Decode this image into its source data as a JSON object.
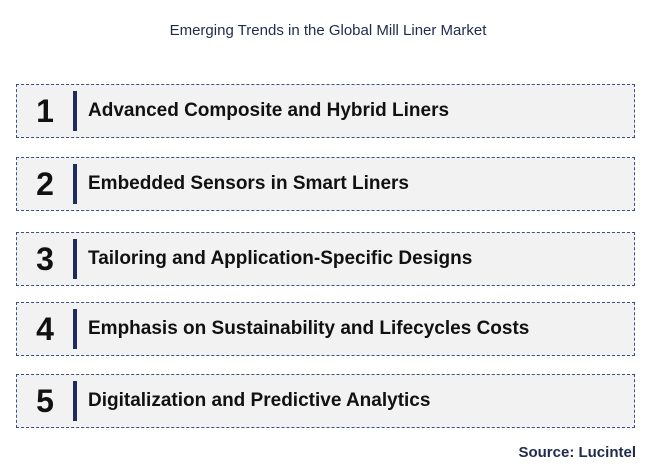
{
  "title": "Emerging Trends in the Global Mill Liner Market",
  "trends": [
    {
      "number": "1",
      "label": "Advanced Composite and Hybrid Liners"
    },
    {
      "number": "2",
      "label": "Embedded Sensors in Smart Liners"
    },
    {
      "number": "3",
      "label": "Tailoring and Application-Specific Designs"
    },
    {
      "number": "4",
      "label": "Emphasis on Sustainability and Lifecycles Costs"
    },
    {
      "number": "5",
      "label": "Digitalization and Predictive Analytics"
    }
  ],
  "source": "Source: Lucintel",
  "colors": {
    "box_background": "#f2f2f2",
    "box_border": "#3f4f86",
    "divider": "#1f2a5e",
    "title_text": "#1f2a4d"
  }
}
